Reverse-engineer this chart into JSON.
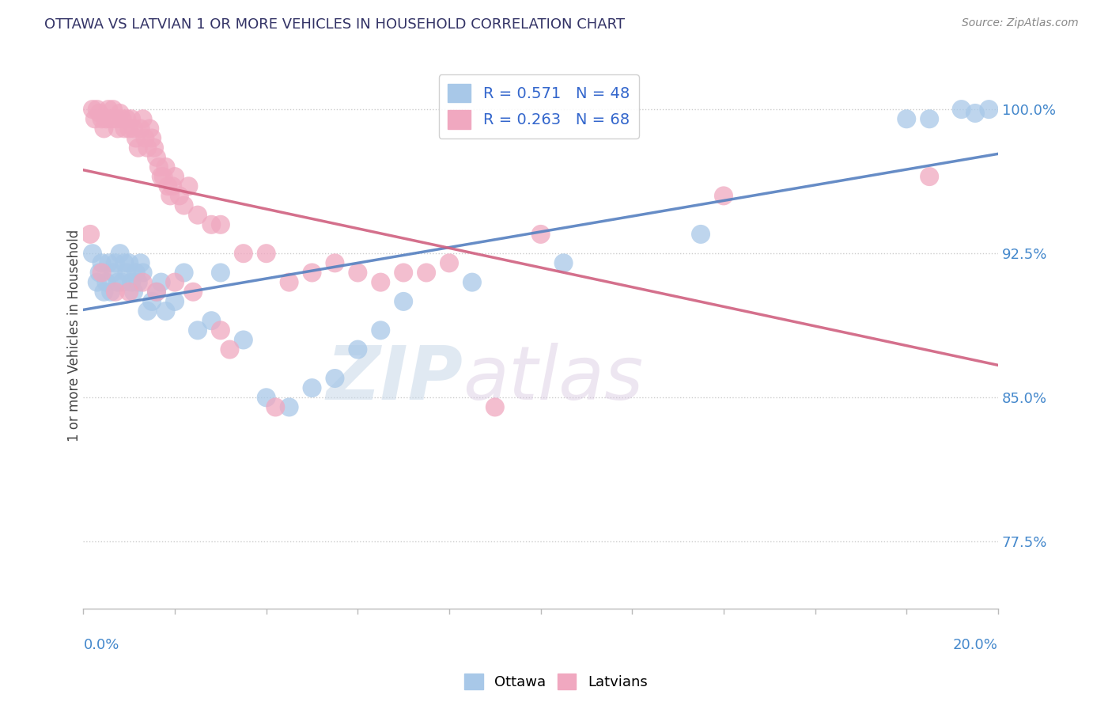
{
  "title": "OTTAWA VS LATVIAN 1 OR MORE VEHICLES IN HOUSEHOLD CORRELATION CHART",
  "source": "Source: ZipAtlas.com",
  "ylabel": "1 or more Vehicles in Household",
  "ytick_values": [
    77.5,
    85.0,
    92.5,
    100.0
  ],
  "xmin": 0.0,
  "xmax": 20.0,
  "ymin": 74.0,
  "ymax": 102.5,
  "legend_ottawa_R": 0.571,
  "legend_ottawa_N": 48,
  "legend_latvians_R": 0.263,
  "legend_latvians_N": 68,
  "ottawa_color": "#a8c8e8",
  "latvians_color": "#f0a8c0",
  "ottawa_line_color": "#5580c0",
  "latvians_line_color": "#d06080",
  "watermark_zip": "ZIP",
  "watermark_atlas": "atlas",
  "ottawa_x": [
    0.2,
    0.3,
    0.35,
    0.4,
    0.45,
    0.5,
    0.55,
    0.6,
    0.65,
    0.7,
    0.75,
    0.8,
    0.85,
    0.9,
    0.95,
    1.0,
    1.05,
    1.1,
    1.15,
    1.2,
    1.25,
    1.3,
    1.4,
    1.5,
    1.6,
    1.7,
    1.8,
    2.0,
    2.2,
    2.5,
    2.8,
    3.0,
    3.5,
    4.0,
    4.5,
    5.0,
    5.5,
    6.0,
    6.5,
    7.0,
    8.5,
    10.5,
    13.5,
    18.0,
    18.5,
    19.2,
    19.5,
    19.8
  ],
  "ottawa_y": [
    92.5,
    91.0,
    91.5,
    92.0,
    90.5,
    91.0,
    92.0,
    90.5,
    91.5,
    92.0,
    91.0,
    92.5,
    91.0,
    92.0,
    91.5,
    92.0,
    91.0,
    90.5,
    91.5,
    91.0,
    92.0,
    91.5,
    89.5,
    90.0,
    90.5,
    91.0,
    89.5,
    90.0,
    91.5,
    88.5,
    89.0,
    91.5,
    88.0,
    85.0,
    84.5,
    85.5,
    86.0,
    87.5,
    88.5,
    90.0,
    91.0,
    92.0,
    93.5,
    99.5,
    99.5,
    100.0,
    99.8,
    100.0
  ],
  "latvians_x": [
    0.15,
    0.2,
    0.25,
    0.3,
    0.35,
    0.4,
    0.45,
    0.5,
    0.55,
    0.6,
    0.65,
    0.7,
    0.75,
    0.8,
    0.85,
    0.9,
    0.95,
    1.0,
    1.05,
    1.1,
    1.15,
    1.2,
    1.25,
    1.3,
    1.35,
    1.4,
    1.45,
    1.5,
    1.55,
    1.6,
    1.65,
    1.7,
    1.75,
    1.8,
    1.85,
    1.9,
    1.95,
    2.0,
    2.1,
    2.2,
    2.3,
    2.5,
    2.8,
    3.0,
    3.5,
    4.0,
    4.5,
    5.0,
    5.5,
    6.0,
    6.5,
    7.0,
    8.0,
    10.0,
    3.0,
    7.5,
    14.0,
    18.5,
    0.4,
    0.7,
    1.0,
    1.3,
    1.6,
    2.0,
    2.4,
    3.2,
    4.2,
    9.0
  ],
  "latvians_y": [
    93.5,
    100.0,
    99.5,
    100.0,
    99.8,
    99.5,
    99.0,
    99.5,
    100.0,
    99.5,
    100.0,
    99.5,
    99.0,
    99.8,
    99.5,
    99.0,
    99.5,
    99.0,
    99.5,
    99.0,
    98.5,
    98.0,
    99.0,
    99.5,
    98.5,
    98.0,
    99.0,
    98.5,
    98.0,
    97.5,
    97.0,
    96.5,
    96.5,
    97.0,
    96.0,
    95.5,
    96.0,
    96.5,
    95.5,
    95.0,
    96.0,
    94.5,
    94.0,
    94.0,
    92.5,
    92.5,
    91.0,
    91.5,
    92.0,
    91.5,
    91.0,
    91.5,
    92.0,
    93.5,
    88.5,
    91.5,
    95.5,
    96.5,
    91.5,
    90.5,
    90.5,
    91.0,
    90.5,
    91.0,
    90.5,
    87.5,
    84.5,
    84.5
  ]
}
